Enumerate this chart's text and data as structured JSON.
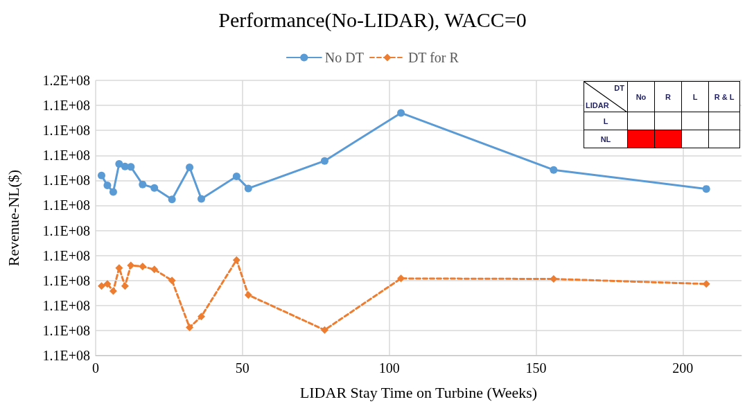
{
  "chart_data": {
    "type": "line",
    "title": "Performance(No-LIDAR), WACC=0",
    "xlabel": "LIDAR Stay Time on Turbine (Weeks)",
    "ylabel": "Revenue-NL($)",
    "x": [
      2,
      4,
      6,
      8,
      10,
      12,
      16,
      20,
      26,
      32,
      36,
      48,
      52,
      78,
      104,
      156,
      208
    ],
    "series": [
      {
        "name": "No DT",
        "color": "#5b9bd5",
        "marker": "circle",
        "line_style": "solid",
        "values": [
          113200000,
          113000000,
          112870000,
          113430000,
          113380000,
          113370000,
          113020000,
          112950000,
          112720000,
          113360000,
          112730000,
          113180000,
          112940000,
          113490000,
          114450000,
          113310000,
          112930000
        ]
      },
      {
        "name": "DT for R",
        "color": "#ed7d31",
        "marker": "diamond",
        "line_style": "dashed",
        "values": [
          110990000,
          111030000,
          110890000,
          111350000,
          110990000,
          111400000,
          111380000,
          111320000,
          111100000,
          110160000,
          110380000,
          111510000,
          110810000,
          110110000,
          111140000,
          111130000,
          111030000
        ]
      }
    ],
    "xlim": [
      0,
      220
    ],
    "xticks": [
      0,
      50,
      100,
      150,
      200
    ],
    "ylim": [
      109600000,
      115100000
    ],
    "yticks": [
      {
        "value": 109600000,
        "label": "1.1E+08"
      },
      {
        "value": 110100000,
        "label": "1.1E+08"
      },
      {
        "value": 110600000,
        "label": "1.1E+08"
      },
      {
        "value": 111100000,
        "label": "1.1E+08"
      },
      {
        "value": 111600000,
        "label": "1.1E+08"
      },
      {
        "value": 112100000,
        "label": "1.1E+08"
      },
      {
        "value": 112600000,
        "label": "1.1E+08"
      },
      {
        "value": 113100000,
        "label": "1.1E+08"
      },
      {
        "value": 113600000,
        "label": "1.1E+08"
      },
      {
        "value": 114100000,
        "label": "1.1E+08"
      },
      {
        "value": 114600000,
        "label": "1.1E+08"
      },
      {
        "value": 115100000,
        "label": "1.2E+08"
      }
    ],
    "grid": true,
    "legend": "top",
    "annotations": [
      "DT",
      "LIDAR",
      "No",
      "R",
      "L",
      "R & L",
      "L",
      "NL"
    ]
  }
}
